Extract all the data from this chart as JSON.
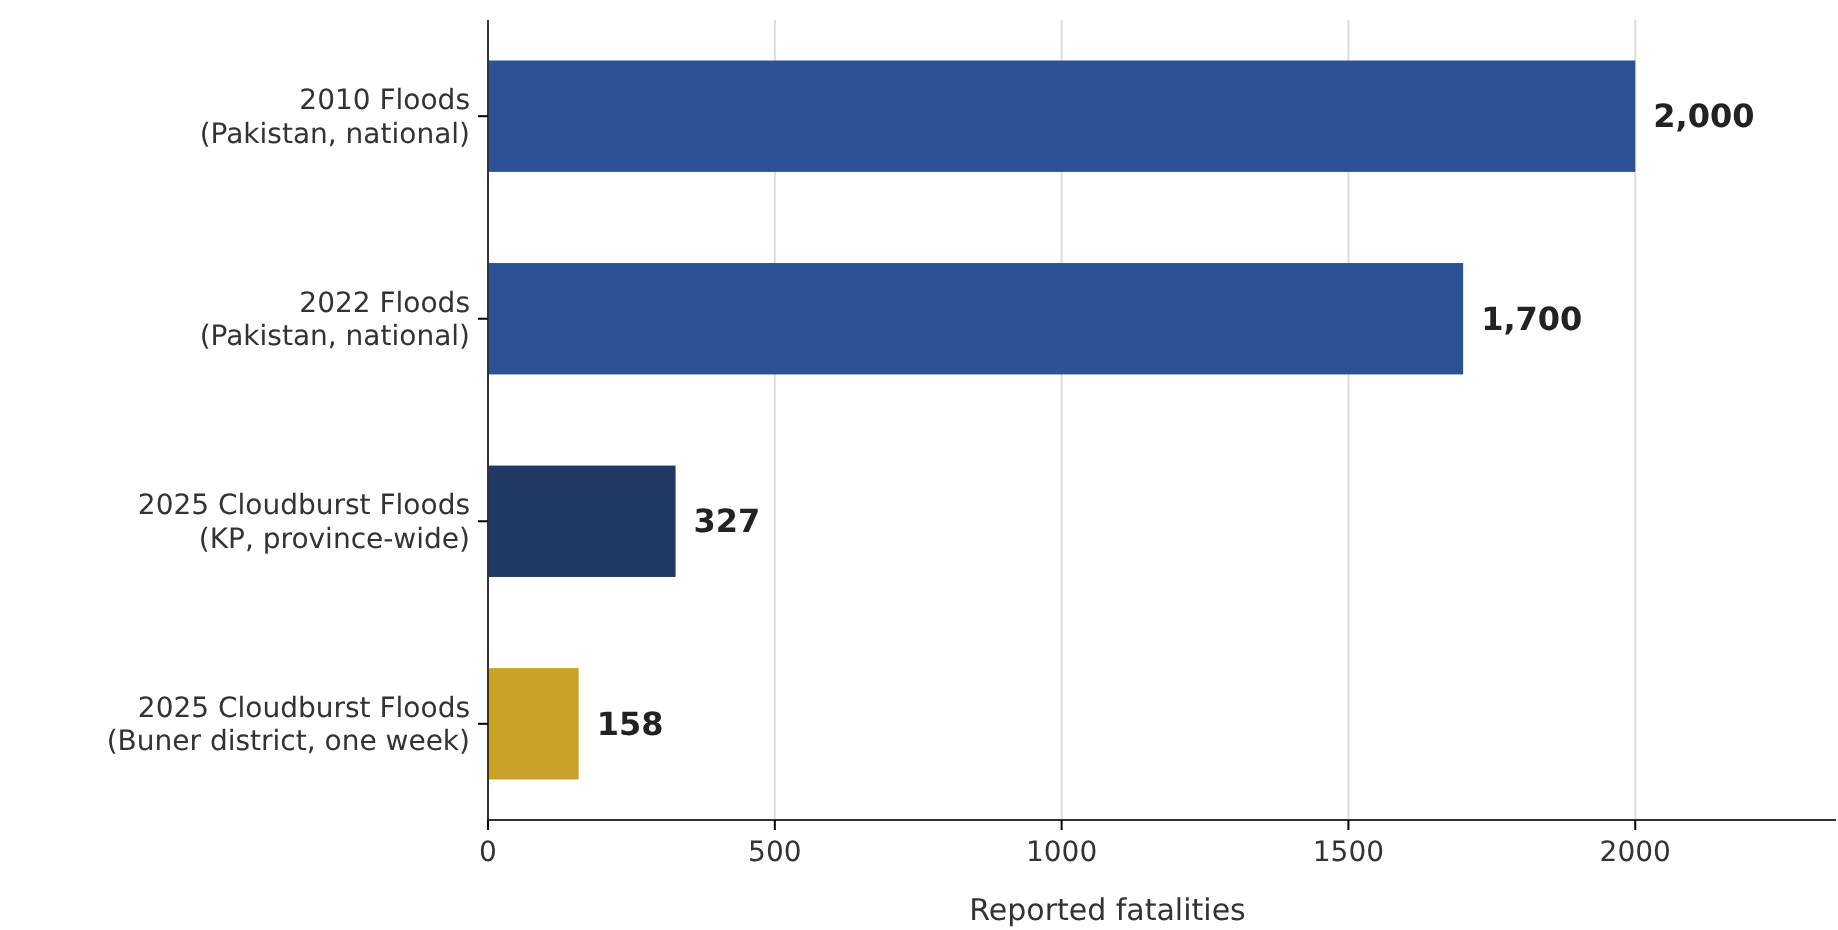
{
  "chart_data": {
    "type": "bar",
    "orientation": "horizontal",
    "categories": [
      "2010 Floods\n(Pakistan, national)",
      "2022 Floods\n(Pakistan, national)",
      "2025 Cloudburst Floods\n(KP, province-wide)",
      "2025 Cloudburst Floods\n(Buner district, one week)"
    ],
    "values": [
      2000,
      1700,
      327,
      158
    ],
    "colors": [
      "#2c5295",
      "#2c5295",
      "#1f3864",
      "#c9a227"
    ],
    "value_labels": [
      "2,000",
      "1,700",
      "327",
      "158"
    ],
    "xlabel": "Reported fatalities",
    "xlim": [
      0,
      2350
    ],
    "xticks": [
      0,
      500,
      1000,
      1500,
      2000
    ],
    "grid": "x"
  }
}
